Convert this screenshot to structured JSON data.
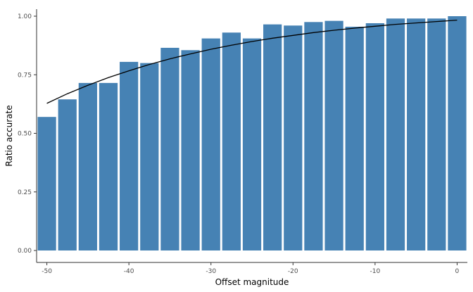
{
  "chart_data": {
    "type": "bar",
    "xlabel": "Offset magnitude",
    "ylabel": "Ratio accurate",
    "xlim": [
      -51.25,
      1.25
    ],
    "ylim": [
      0,
      1.0
    ],
    "x_ticks": [
      -50,
      -40,
      -30,
      -20,
      -10,
      0
    ],
    "x_tick_labels": [
      "-50",
      "-40",
      "-30",
      "-20",
      "-10",
      "0"
    ],
    "y_ticks": [
      0,
      0.25,
      0.5,
      0.75,
      1.0
    ],
    "y_tick_labels": [
      "0.00",
      "0.25",
      "0.50",
      "0.75",
      "1.00"
    ],
    "bar_color": "#4682b4",
    "bar_width": 2.25,
    "x": [
      -50,
      -47.5,
      -45,
      -42.5,
      -40,
      -37.5,
      -35,
      -32.5,
      -30,
      -27.5,
      -25,
      -22.5,
      -20,
      -17.5,
      -15,
      -12.5,
      -10,
      -7.5,
      -5,
      -2.5,
      0
    ],
    "values": [
      0.57,
      0.645,
      0.715,
      0.715,
      0.805,
      0.8,
      0.865,
      0.855,
      0.905,
      0.93,
      0.905,
      0.965,
      0.96,
      0.975,
      0.98,
      0.955,
      0.97,
      0.99,
      0.99,
      0.99,
      1.0
    ],
    "fit_line": {
      "color": "#000000",
      "x": [
        -50,
        -47.5,
        -45,
        -42.5,
        -40,
        -37.5,
        -35,
        -32.5,
        -30,
        -27.5,
        -25,
        -22.5,
        -20,
        -17.5,
        -15,
        -12.5,
        -10,
        -7.5,
        -5,
        -2.5,
        0
      ],
      "y": [
        0.628,
        0.669,
        0.705,
        0.738,
        0.767,
        0.794,
        0.818,
        0.839,
        0.859,
        0.876,
        0.892,
        0.906,
        0.918,
        0.93,
        0.94,
        0.949,
        0.957,
        0.965,
        0.971,
        0.977,
        0.983
      ]
    },
    "grid": false
  }
}
